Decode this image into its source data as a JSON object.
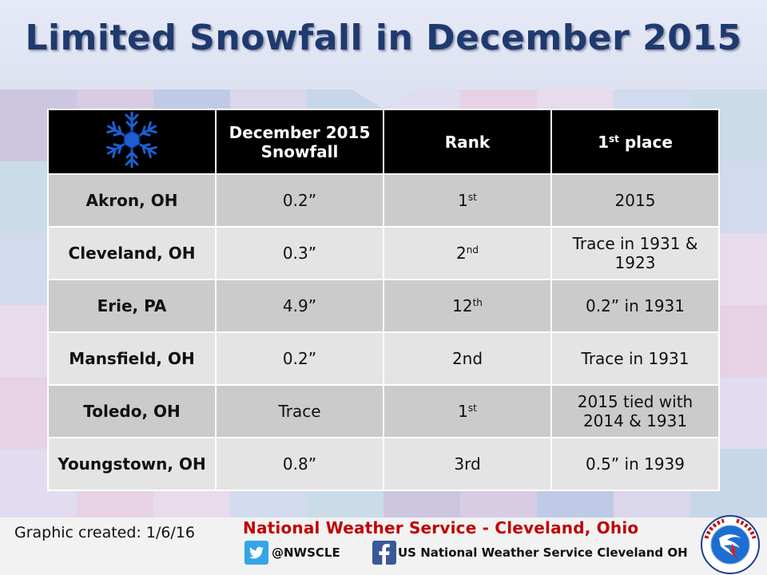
{
  "title": "Limited Snowfall in December 2015",
  "table": {
    "headers": {
      "col1_line1": "December 2015",
      "col1_line2": "Snowfall",
      "col2": "Rank",
      "col3_main": "1",
      "col3_sup": "st",
      "col3_tail": " place"
    },
    "rows": [
      {
        "city": "Akron, OH",
        "snowfall": "0.2”",
        "rank": "1",
        "rank_sup": "st",
        "first_place": "2015"
      },
      {
        "city": "Cleveland, OH",
        "snowfall": "0.3”",
        "rank": "2",
        "rank_sup": "nd",
        "first_place": "Trace in 1931 & 1923"
      },
      {
        "city": "Erie, PA",
        "snowfall": "4.9”",
        "rank": "12",
        "rank_sup": "th",
        "first_place": "0.2” in 1931"
      },
      {
        "city": "Mansfield, OH",
        "snowfall": "0.2”",
        "rank": "2nd",
        "rank_sup": "",
        "first_place": "Trace in 1931"
      },
      {
        "city": "Toledo, OH",
        "snowfall": "Trace",
        "rank": "1",
        "rank_sup": "st",
        "first_place": "2015 tied with 2014 & 1931"
      },
      {
        "city": "Youngstown, OH",
        "snowfall": "0.8”",
        "rank": "3rd",
        "rank_sup": "",
        "first_place": "0.5” in 1939"
      }
    ]
  },
  "footer": {
    "created": "Graphic created: 1/6/16",
    "office": "National Weather Service - Cleveland, Ohio",
    "twitter": "@NWSCLE",
    "facebook": "US National Weather Service Cleveland OH"
  },
  "icons": {
    "snowflake": "snowflake-icon",
    "twitter": "twitter-icon",
    "facebook": "facebook-icon",
    "logo": "nws-logo"
  },
  "colors": {
    "title": "#1f3a6e",
    "office": "#c00000",
    "snowflake": "#1b5fd1",
    "header_bg": "#000000",
    "row_dark": "#cbcbcb",
    "row_light": "#e4e4e4"
  }
}
